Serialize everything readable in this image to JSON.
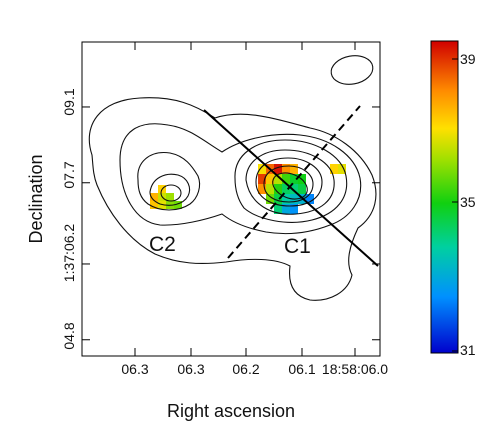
{
  "chart_data": {
    "type": "heatmap",
    "xlabel": "Right ascension",
    "ylabel": "Declination",
    "x_tick_labels": [
      "06.3",
      "06.3",
      "06.2",
      "06.1",
      "18:58:06.0"
    ],
    "y_tick_labels": [
      "04.8",
      "1:37:06.2",
      "07.7",
      "09.1"
    ],
    "y_tick_values": [
      4.8,
      6.2,
      7.7,
      9.1
    ],
    "ylim": [
      4.5,
      10.3
    ],
    "source_labels": [
      "C2",
      "C1"
    ],
    "colorbar": {
      "min": 31,
      "max": 39.4,
      "tick_labels": [
        "39",
        "35",
        "31"
      ],
      "tick_values": [
        39,
        35,
        31
      ],
      "colormap": "rainbow"
    },
    "pixels": [
      {
        "col": 0,
        "row": 0,
        "value": 37.0
      },
      {
        "col": 1,
        "row": 0,
        "value": 38.4
      },
      {
        "col": 2,
        "row": 0,
        "value": 39.2
      },
      {
        "col": 3,
        "row": 0,
        "value": 38.0
      },
      {
        "col": 4,
        "row": 0,
        "value": 37.6
      },
      {
        "col": 0,
        "row": 1,
        "value": 38.8
      },
      {
        "col": 1,
        "row": 1,
        "value": 37.4
      },
      {
        "col": 2,
        "row": 1,
        "value": 36.4
      },
      {
        "col": 3,
        "row": 1,
        "value": 35.4
      },
      {
        "col": 4,
        "row": 1,
        "value": 34.8
      },
      {
        "col": 5,
        "row": 1,
        "value": 35.0
      },
      {
        "col": 0,
        "row": 2,
        "value": 38.0
      },
      {
        "col": 1,
        "row": 2,
        "value": 36.4
      },
      {
        "col": 2,
        "row": 2,
        "value": 35.2
      },
      {
        "col": 3,
        "row": 2,
        "value": 34.4
      },
      {
        "col": 4,
        "row": 2,
        "value": 34.2
      },
      {
        "col": 5,
        "row": 2,
        "value": 34.6
      },
      {
        "col": 1,
        "row": 3,
        "value": 35.8
      },
      {
        "col": 2,
        "row": 3,
        "value": 34.6
      },
      {
        "col": 3,
        "row": 3,
        "value": 33.8
      },
      {
        "col": 4,
        "row": 3,
        "value": 33.4
      },
      {
        "col": 5,
        "row": 3,
        "value": 33.2
      },
      {
        "col": 6,
        "row": 3,
        "value": 32.4
      },
      {
        "col": 2,
        "row": 4,
        "value": 34.2
      },
      {
        "col": 3,
        "row": 4,
        "value": 33.0
      },
      {
        "col": 4,
        "row": 4,
        "value": 32.6
      },
      {
        "col": 9,
        "row": 0,
        "value": 37.2
      },
      {
        "col": 10,
        "row": 0,
        "value": 36.8
      }
    ],
    "pixels_c2": [
      {
        "col": 1,
        "row": 0,
        "value": 37.2
      },
      {
        "col": 0,
        "row": 1,
        "value": 37.6
      },
      {
        "col": 1,
        "row": 1,
        "value": 36.6
      },
      {
        "col": 2,
        "row": 1,
        "value": 36.2
      },
      {
        "col": 0,
        "row": 2,
        "value": 37.4
      },
      {
        "col": 1,
        "row": 2,
        "value": 36.8
      },
      {
        "col": 2,
        "row": 2,
        "value": 36.0
      },
      {
        "col": 3,
        "row": 2,
        "value": 35.8
      }
    ]
  }
}
